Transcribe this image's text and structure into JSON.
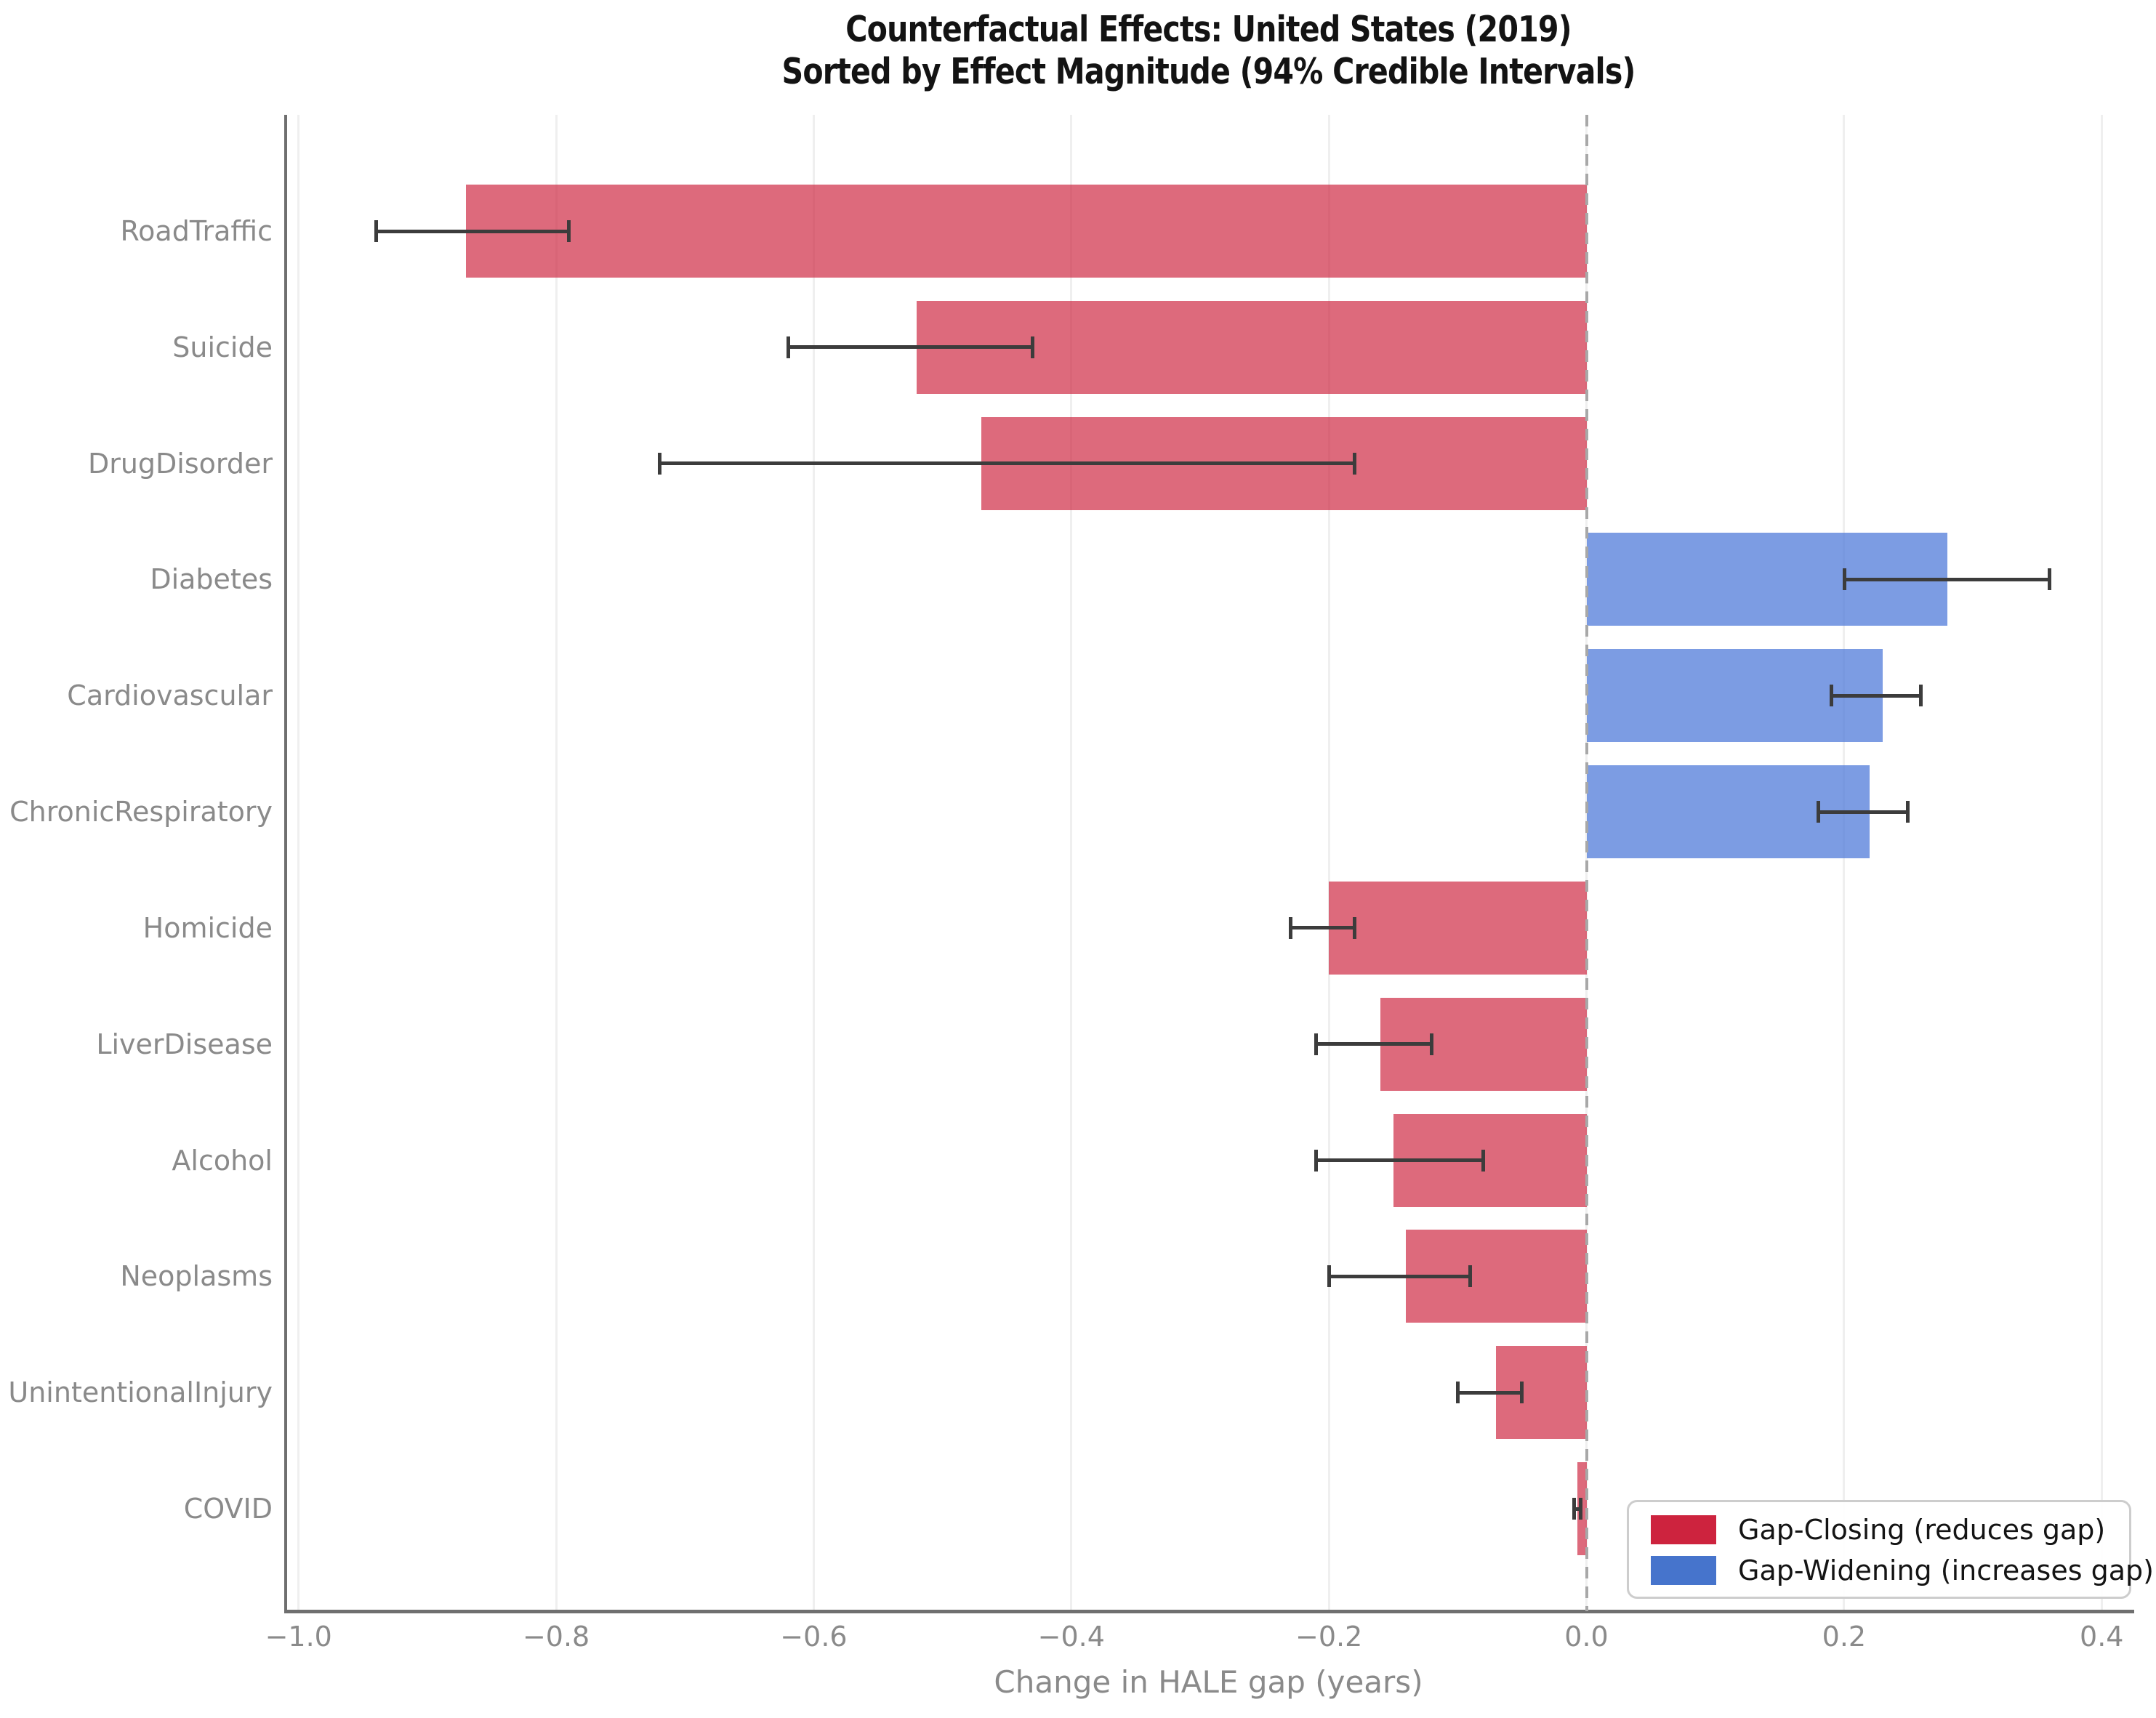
{
  "chart_data": {
    "type": "bar",
    "orientation": "horizontal",
    "title_line1": "Counterfactual Effects: United States (2019)",
    "title_line2": "Sorted by Effect Magnitude (94% Credible Intervals)",
    "xlabel": "Change in HALE gap (years)",
    "xlim": [
      -1.01,
      0.423
    ],
    "xticks": [
      -1.0,
      -0.8,
      -0.6,
      -0.4,
      -0.2,
      0.0,
      0.2,
      0.4
    ],
    "xtick_labels": [
      "−1.0",
      "−0.8",
      "−0.6",
      "−0.4",
      "−0.2",
      "0.0",
      "0.2",
      "0.4"
    ],
    "zero_line": 0.0,
    "grid": true,
    "error_bars": "94% credible intervals",
    "bars": [
      {
        "category": "RoadTraffic",
        "value": -0.87,
        "ci_low": -0.94,
        "ci_high": -0.79,
        "group": "gap_closing"
      },
      {
        "category": "Suicide",
        "value": -0.52,
        "ci_low": -0.62,
        "ci_high": -0.43,
        "group": "gap_closing"
      },
      {
        "category": "DrugDisorder",
        "value": -0.47,
        "ci_low": -0.72,
        "ci_high": -0.18,
        "group": "gap_closing"
      },
      {
        "category": "Diabetes",
        "value": 0.28,
        "ci_low": 0.2,
        "ci_high": 0.36,
        "group": "gap_widening"
      },
      {
        "category": "Cardiovascular",
        "value": 0.23,
        "ci_low": 0.19,
        "ci_high": 0.26,
        "group": "gap_widening"
      },
      {
        "category": "ChronicRespiratory",
        "value": 0.22,
        "ci_low": 0.18,
        "ci_high": 0.25,
        "group": "gap_widening"
      },
      {
        "category": "Homicide",
        "value": -0.2,
        "ci_low": -0.23,
        "ci_high": -0.18,
        "group": "gap_closing"
      },
      {
        "category": "LiverDisease",
        "value": -0.16,
        "ci_low": -0.21,
        "ci_high": -0.12,
        "group": "gap_closing"
      },
      {
        "category": "Alcohol",
        "value": -0.15,
        "ci_low": -0.21,
        "ci_high": -0.08,
        "group": "gap_closing"
      },
      {
        "category": "Neoplasms",
        "value": -0.14,
        "ci_low": -0.2,
        "ci_high": -0.09,
        "group": "gap_closing"
      },
      {
        "category": "UnintentionalInjury",
        "value": -0.07,
        "ci_low": -0.1,
        "ci_high": -0.05,
        "group": "gap_closing"
      },
      {
        "category": "COVID",
        "value": -0.007,
        "ci_low": -0.01,
        "ci_high": -0.004,
        "group": "gap_closing"
      }
    ],
    "legend": [
      {
        "label": "Gap-Closing (reduces gap)",
        "color": "#cd233e",
        "group": "gap_closing"
      },
      {
        "label": "Gap-Widening (increases gap)",
        "color": "#4674cc",
        "group": "gap_widening"
      }
    ],
    "legend_position": "lower right",
    "colors": {
      "gap_closing_fill": "rgba(205,35,62,0.68)",
      "gap_widening_fill": "rgba(74,118,216,0.72)",
      "error_bar": "#3c3c3c",
      "grid": "#efefef",
      "zero_line": "#a8a8a8",
      "spine": "#6f6f6f",
      "tick_label": "#8a8a8a",
      "title": "#131313"
    }
  }
}
